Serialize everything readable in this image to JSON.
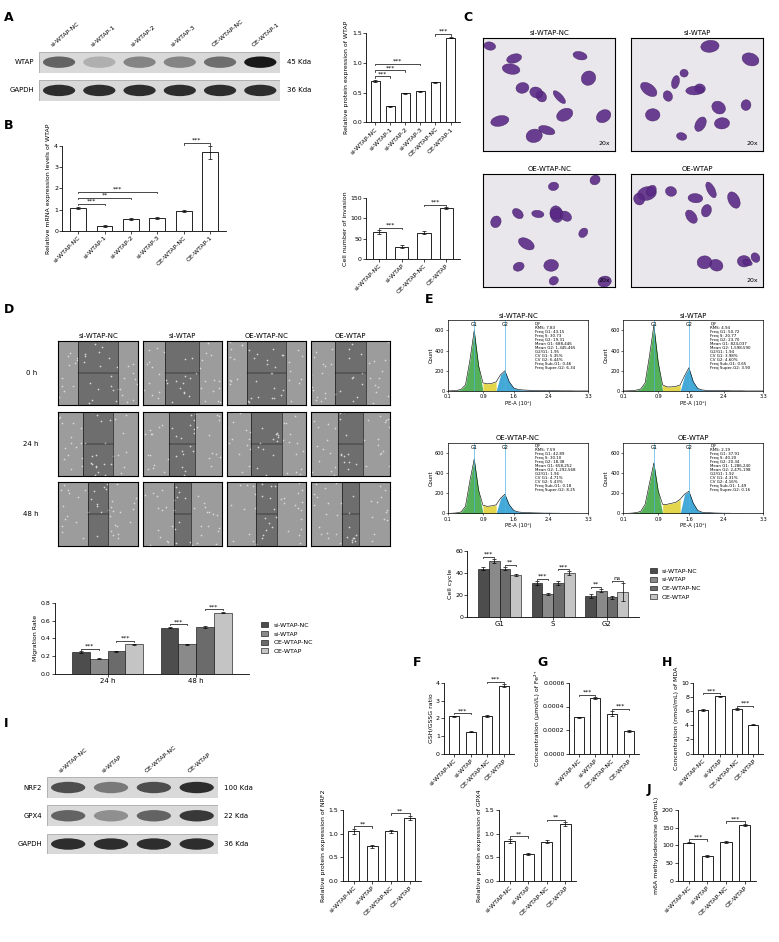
{
  "chart_data": [
    {
      "type": "bar",
      "categories": [
        "si-WTAP-NC",
        "si-WTAP-1",
        "si-WTAP-2",
        "si-WTAP-3",
        "OE-WTAP-NC",
        "OE-WTAP-1"
      ],
      "values": [
        0.7,
        0.27,
        0.49,
        0.52,
        0.67,
        1.42
      ],
      "errors": [
        0.02,
        0.01,
        0.01,
        0.01,
        0.01,
        0.01
      ],
      "color": "#ffffff",
      "ylabel": "Relative protein expression of WTAP",
      "ylim": [
        0,
        1.5
      ],
      "yticks": [
        {
          "value": 0,
          "label": "0.0"
        },
        {
          "value": 0.5,
          "label": "0.5"
        },
        {
          "value": 1.0,
          "label": "1.0"
        },
        {
          "value": 1.5,
          "label": "1.5"
        }
      ],
      "significance": [
        {
          "pair": [
            0,
            1
          ],
          "text": "***"
        },
        {
          "pair": [
            0,
            2
          ],
          "text": "***"
        },
        {
          "pair": [
            0,
            3
          ],
          "text": "***"
        },
        {
          "pair": [
            4,
            5
          ],
          "text": "***"
        }
      ]
    },
    {
      "type": "bar",
      "categories": [
        "si-WTAP-NC",
        "si-WTAP-1",
        "si-WTAP-2",
        "si-WTAP-3",
        "OE-WTAP-NC",
        "OE-WTAP-1"
      ],
      "values": [
        1.08,
        0.22,
        0.55,
        0.6,
        0.95,
        3.7
      ],
      "errors": [
        0.05,
        0.03,
        0.04,
        0.04,
        0.04,
        0.3
      ],
      "color": "#ffffff",
      "ylabel": "Relative mRNA expression levels of WTAP",
      "ylim": [
        0,
        4
      ],
      "yticks": [
        0,
        1,
        2,
        3,
        4
      ],
      "significance": [
        {
          "pair": [
            0,
            1
          ],
          "text": "***"
        },
        {
          "pair": [
            0,
            2
          ],
          "text": "**"
        },
        {
          "pair": [
            0,
            3
          ],
          "text": "***"
        },
        {
          "pair": [
            4,
            5
          ],
          "text": "***"
        }
      ]
    },
    {
      "type": "bar",
      "categories": [
        "si-WTAP-NC",
        "si-WTAP",
        "OE-WTAP-NC",
        "OE-WTAP"
      ],
      "values": [
        67,
        30,
        65,
        125
      ],
      "errors": [
        5,
        4,
        3,
        3
      ],
      "color": "#ffffff",
      "ylabel": "Cell number of invasion",
      "ylim": [
        0,
        150
      ],
      "yticks": [
        0,
        50,
        100,
        150
      ],
      "significance": [
        {
          "pair": [
            0,
            1
          ],
          "text": "***"
        },
        {
          "pair": [
            2,
            3
          ],
          "text": "***"
        }
      ]
    },
    {
      "type": "bar",
      "categories": [
        "24 h",
        "48 h"
      ],
      "ylabel": "Migration Rate",
      "legend": "right",
      "series": [
        {
          "name": "si-WTAP-NC",
          "color": "#4d4d4d",
          "values": [
            0.24,
            0.52
          ],
          "errors": [
            0.01,
            0.01
          ]
        },
        {
          "name": "si-WTAP",
          "color": "#8a8a8a",
          "values": [
            0.17,
            0.33
          ],
          "errors": [
            0.01,
            0.01
          ]
        },
        {
          "name": "OE-WTAP-NC",
          "color": "#6b6b6b",
          "values": [
            0.25,
            0.53
          ],
          "errors": [
            0.01,
            0.01
          ]
        },
        {
          "name": "OE-WTAP",
          "color": "#c4c4c4",
          "values": [
            0.33,
            0.69
          ],
          "errors": [
            0.01,
            0.01
          ]
        }
      ],
      "ylim": [
        0,
        0.8
      ],
      "yticks": [
        {
          "value": 0,
          "label": "0.0"
        },
        {
          "value": 0.2,
          "label": "0.2"
        },
        {
          "value": 0.4,
          "label": "0.4"
        },
        {
          "value": 0.6,
          "label": "0.6"
        },
        {
          "value": 0.8,
          "label": "0.8"
        }
      ],
      "significance": [
        {
          "category": 0,
          "pair": [
            0,
            1
          ],
          "text": "***"
        },
        {
          "category": 0,
          "pair": [
            2,
            3
          ],
          "text": "***"
        },
        {
          "category": 1,
          "pair": [
            0,
            1
          ],
          "text": "***"
        },
        {
          "category": 1,
          "pair": [
            2,
            3
          ],
          "text": "***"
        }
      ]
    },
    {
      "type": "bar",
      "categories": [
        "G1",
        "S",
        "G2"
      ],
      "ylabel": "Cell cycle",
      "legend": "right",
      "series": [
        {
          "name": "si-WTAP-NC",
          "color": "#4d4d4d",
          "values": [
            44,
            31,
            19
          ],
          "errors": [
            1.5,
            1.5,
            1.5
          ]
        },
        {
          "name": "si-WTAP",
          "color": "#8a8a8a",
          "values": [
            51,
            21,
            24
          ],
          "errors": [
            1.5,
            1.0,
            1.5
          ]
        },
        {
          "name": "OE-WTAP-NC",
          "color": "#6b6b6b",
          "values": [
            44,
            31,
            18
          ],
          "errors": [
            1.5,
            1.5,
            1.5
          ]
        },
        {
          "name": "OE-WTAP",
          "color": "#c4c4c4",
          "values": [
            38,
            40,
            23
          ],
          "errors": [
            1.0,
            1.5,
            8.0
          ]
        }
      ],
      "ylim": [
        0,
        60
      ],
      "yticks": [
        0,
        20,
        40,
        60
      ],
      "significance": [
        {
          "category": 0,
          "pair": [
            0,
            1
          ],
          "text": "***"
        },
        {
          "category": 0,
          "pair": [
            2,
            3
          ],
          "text": "**"
        },
        {
          "category": 1,
          "pair": [
            0,
            1
          ],
          "text": "***"
        },
        {
          "category": 1,
          "pair": [
            2,
            3
          ],
          "text": "***"
        },
        {
          "category": 2,
          "pair": [
            0,
            1
          ],
          "text": "**"
        },
        {
          "category": 2,
          "pair": [
            2,
            3
          ],
          "text": "ns"
        }
      ]
    },
    {
      "type": "bar",
      "categories": [
        "si-WTAP-NC",
        "si-WTAP",
        "OE-WTAP-NC",
        "OE-WTAP"
      ],
      "values": [
        2.12,
        1.25,
        2.12,
        3.85
      ],
      "errors": [
        0.03,
        0.03,
        0.05,
        0.08
      ],
      "color": "#ffffff",
      "ylabel": "GSH/GSSG ratio",
      "ylim": [
        0,
        4
      ],
      "yticks": [
        0,
        1,
        2,
        3,
        4
      ],
      "significance": [
        {
          "pair": [
            0,
            1
          ],
          "text": "***"
        },
        {
          "pair": [
            2,
            3
          ],
          "text": "***"
        }
      ]
    },
    {
      "type": "bar",
      "categories": [
        "si-WTAP-NC",
        "si-WTAP",
        "OE-WTAP-NC",
        "OE-WTAP"
      ],
      "values": [
        0.00031,
        0.00047,
        0.00034,
        0.00019
      ],
      "errors": [
        5e-06,
        1e-05,
        2e-05,
        1e-05
      ],
      "color": "#ffffff",
      "ylabel": "Concentration (μmol/L) of Fe²⁺",
      "ylim": [
        0,
        0.0006
      ],
      "yticks": [
        {
          "value": 0,
          "label": "0.0000"
        },
        {
          "value": 0.0002,
          "label": "0.0002"
        },
        {
          "value": 0.0004,
          "label": "0.0004"
        },
        {
          "value": 0.0006,
          "label": "0.0006"
        }
      ],
      "significance": [
        {
          "pair": [
            0,
            1
          ],
          "text": "***"
        },
        {
          "pair": [
            2,
            3
          ],
          "text": "***"
        }
      ]
    },
    {
      "type": "bar",
      "categories": [
        "si-WTAP-NC",
        "si-WTAP",
        "OE-WTAP-NC",
        "OE-WTAP"
      ],
      "values": [
        6.2,
        8.1,
        6.3,
        4.1
      ],
      "errors": [
        0.1,
        0.1,
        0.1,
        0.1
      ],
      "color": "#ffffff",
      "ylabel": "Concentration (nmol/mL) of MDA",
      "ylim": [
        0,
        10
      ],
      "yticks": [
        0,
        2,
        4,
        6,
        8,
        10
      ],
      "significance": [
        {
          "pair": [
            0,
            1
          ],
          "text": "***"
        },
        {
          "pair": [
            2,
            3
          ],
          "text": "***"
        }
      ]
    },
    {
      "type": "bar",
      "categories": [
        "si-WTAP-NC",
        "si-WTAP",
        "OE-WTAP-NC",
        "OE-WTAP"
      ],
      "values": [
        1.05,
        0.73,
        1.05,
        1.33
      ],
      "errors": [
        0.05,
        0.03,
        0.03,
        0.05
      ],
      "color": "#ffffff",
      "ylabel": "Relative protein expression of NRF2",
      "ylim": [
        0,
        1.5
      ],
      "yticks": [
        {
          "value": 0,
          "label": "0.0"
        },
        {
          "value": 0.5,
          "label": "0.5"
        },
        {
          "value": 1.0,
          "label": "1.0"
        },
        {
          "value": 1.5,
          "label": "1.5"
        }
      ],
      "significance": [
        {
          "pair": [
            0,
            1
          ],
          "text": "**"
        },
        {
          "pair": [
            2,
            3
          ],
          "text": "**"
        }
      ]
    },
    {
      "type": "bar",
      "categories": [
        "si-WTAP-NC",
        "si-WTAP",
        "OE-WTAP-NC",
        "OE-WTAP"
      ],
      "values": [
        0.85,
        0.56,
        0.83,
        1.2
      ],
      "errors": [
        0.04,
        0.02,
        0.03,
        0.04
      ],
      "color": "#ffffff",
      "ylabel": "Relative protein expression of GPX4",
      "ylim": [
        0,
        1.5
      ],
      "yticks": [
        {
          "value": 0,
          "label": "0.0"
        },
        {
          "value": 0.5,
          "label": "0.5"
        },
        {
          "value": 1.0,
          "label": "1.0"
        },
        {
          "value": 1.5,
          "label": "1.5"
        }
      ],
      "significance": [
        {
          "pair": [
            0,
            1
          ],
          "text": "**"
        },
        {
          "pair": [
            2,
            3
          ],
          "text": "**"
        }
      ]
    },
    {
      "type": "bar",
      "categories": [
        "si-WTAP-NC",
        "si-WTAP",
        "OE-WTAP-NC",
        "OE-WTAP"
      ],
      "values": [
        108,
        70,
        110,
        158
      ],
      "errors": [
        2,
        2,
        2,
        3
      ],
      "color": "#ffffff",
      "ylabel": "m6A methyladenosine (pg/mL)",
      "ylim": [
        0,
        200
      ],
      "yticks": [
        0,
        50,
        100,
        150,
        200
      ],
      "significance": [
        {
          "pair": [
            0,
            1
          ],
          "text": "***"
        },
        {
          "pair": [
            2,
            3
          ],
          "text": "***"
        }
      ]
    }
  ],
  "panel_letters": [
    "A",
    "B",
    "C",
    "D",
    "E",
    "F",
    "G",
    "H",
    "I",
    "J"
  ],
  "blots": [
    {
      "lanes": [
        "si-WTAP-NC",
        "si-WTAP-1",
        "si-WTAP-2",
        "si-WTAP-3",
        "OE-WTAP-NC",
        "OE-WTAP-1"
      ],
      "bands": [
        {
          "name": "WTAP",
          "size": "45 Kda",
          "intensity": [
            0.6,
            0.25,
            0.45,
            0.45,
            0.55,
            0.95
          ]
        },
        {
          "name": "GAPDH",
          "size": "36 Kda",
          "intensity": [
            0.85,
            0.85,
            0.85,
            0.85,
            0.85,
            0.85
          ]
        }
      ]
    },
    {
      "lanes": [
        "si-WTAP-NC",
        "si-WTAP",
        "OE-WTAP-NC",
        "OE-WTAP"
      ],
      "bands": [
        {
          "name": "NRF2",
          "size": "100 Kda",
          "intensity": [
            0.7,
            0.5,
            0.7,
            0.85
          ]
        },
        {
          "name": "GPX4",
          "size": "22 Kda",
          "intensity": [
            0.6,
            0.4,
            0.6,
            0.8
          ]
        },
        {
          "name": "GAPDH",
          "size": "36 Kda",
          "intensity": [
            0.85,
            0.85,
            0.85,
            0.85
          ]
        }
      ]
    }
  ],
  "invasion_images": {
    "labels": [
      "si-WTAP-NC",
      "si-WTAP",
      "OE-WTAP-NC",
      "OE-WTAP"
    ],
    "magnification": "20x"
  },
  "wound_images": {
    "columns": [
      "si-WTAP-NC",
      "si-WTAP",
      "OE-WTAP-NC",
      "OE-WTAP"
    ],
    "rows": [
      "0 h",
      "24 h",
      "48 h"
    ]
  },
  "flow_histograms": {
    "xlabel": "PE-A (10⁶)",
    "ylabel": "Count",
    "xlim": [
      0.1,
      3.3
    ],
    "xticks": [
      0.1,
      0.9,
      1.6,
      2.4,
      3.3
    ],
    "ylim": [
      0,
      700
    ],
    "yticks": [
      0,
      200,
      400,
      600
    ],
    "x": [
      0.1,
      0.2,
      0.3,
      0.4,
      0.5,
      0.6,
      0.7,
      0.8,
      0.9,
      1.0,
      1.1,
      1.2,
      1.3,
      1.4,
      1.5,
      1.6,
      1.7,
      1.8,
      1.9,
      2.0,
      2.1,
      2.2,
      2.3,
      2.4,
      2.5,
      2.6,
      2.7,
      2.8,
      2.9,
      3.0,
      3.1,
      3.2,
      3.3
    ],
    "plots": [
      {
        "title": "si-WTAP-NC",
        "counts": [
          0,
          2,
          5,
          15,
          60,
          300,
          600,
          250,
          80,
          70,
          75,
          90,
          160,
          200,
          90,
          30,
          15,
          10,
          8,
          6,
          5,
          4,
          3,
          3,
          2,
          2,
          1,
          1,
          1,
          0,
          0,
          0,
          0
        ],
        "gates": [
          {
            "label": "G1",
            "x": 0.7
          },
          {
            "label": "G2",
            "x": 1.4
          }
        ],
        "stats": [
          "DJF",
          "RMS: 7.83",
          "Freq G1: 43.15",
          "Freq S: 30.73",
          "Freq G2: 19.31",
          "Mean G1: 688,446",
          "Mean G2: 1,345,465",
          "G2/G1: 1.95",
          "CV G1: 5.35%",
          "CV G2: 6.44%",
          "Freq Sub-G1: 0.46",
          "Freq Super-G2: 6.34"
        ]
      },
      {
        "title": "si-WTAP",
        "counts": [
          0,
          1,
          3,
          8,
          20,
          80,
          350,
          650,
          280,
          60,
          40,
          40,
          45,
          60,
          150,
          230,
          90,
          25,
          10,
          6,
          5,
          4,
          3,
          2,
          2,
          1,
          1,
          1,
          0,
          0,
          0,
          0,
          0
        ],
        "gates": [
          {
            "label": "G1",
            "x": 0.8
          },
          {
            "label": "G2",
            "x": 1.6
          }
        ],
        "stats": [
          "DJF",
          "RMS: 4.94",
          "Freq G1: 50.72",
          "Freq S: 20.77",
          "Freq G2: 23.70",
          "Mean G1: 824,037",
          "Mean G2: 1,598,590",
          "G2/G1: 1.94",
          "CV G1: 3.98%",
          "CV G2: 4.60%",
          "Freq Sub-G1: 0.65",
          "Freq Super-G2: 3.90"
        ]
      },
      {
        "title": "OE-WTAP-NC",
        "counts": [
          0,
          2,
          5,
          15,
          70,
          320,
          540,
          230,
          80,
          70,
          75,
          85,
          150,
          190,
          85,
          30,
          15,
          10,
          8,
          6,
          5,
          4,
          3,
          3,
          2,
          2,
          1,
          1,
          1,
          0,
          0,
          0,
          0
        ],
        "gates": [
          {
            "label": "G1",
            "x": 0.7
          },
          {
            "label": "G2",
            "x": 1.4
          }
        ],
        "stats": [
          "DJF",
          "RMS: 7.59",
          "Freq G1: 42.89",
          "Freq S: 30.10",
          "Freq G2: 18.38",
          "Mean G1: 658,252",
          "Mean G2: 1,292,568",
          "G2/G1: 1.96",
          "CV G1: 4.71%",
          "CV G2: 5.43%",
          "Freq Sub-G1: 0.18",
          "Freq Super-G2: 8.25"
        ]
      },
      {
        "title": "OE-WTAP",
        "counts": [
          0,
          1,
          3,
          8,
          20,
          90,
          300,
          500,
          220,
          90,
          90,
          100,
          110,
          140,
          190,
          220,
          100,
          30,
          12,
          8,
          6,
          4,
          3,
          2,
          2,
          1,
          1,
          1,
          0,
          0,
          0,
          0,
          0
        ],
        "gates": [
          {
            "label": "G1",
            "x": 0.8
          },
          {
            "label": "G2",
            "x": 1.6
          }
        ],
        "stats": [
          "DJF",
          "RMS: 2.19",
          "Freq G1: 37.91",
          "Freq S: 40.20",
          "Freq G2: 20.34",
          "Mean G1: 1,286,240",
          "Mean G2: 2,475,198",
          "G2/G1: 1.92",
          "CV G1: 4.31%",
          "CV G2: 4.16%",
          "Freq Sub-G1: 1.49",
          "Freq Super-G2: 0.16"
        ]
      }
    ]
  }
}
